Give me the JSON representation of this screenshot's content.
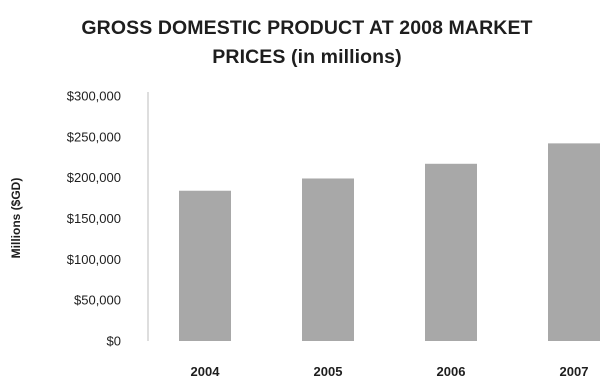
{
  "chart_data": {
    "type": "bar",
    "title_lines": [
      "GROSS DOMESTIC PRODUCT AT 2008 MARKET",
      "PRICES (in millions)"
    ],
    "xlabel": "",
    "ylabel": "Millions ($GD)",
    "categories": [
      "2004",
      "2005",
      "2006",
      "2007"
    ],
    "values": [
      184000,
      199000,
      217000,
      242000
    ],
    "ylim": [
      0,
      300000
    ],
    "yticks": [
      0,
      50000,
      100000,
      150000,
      200000,
      250000,
      300000
    ],
    "ytick_labels": [
      "$0",
      "$50,000",
      "$100,000",
      "$150,000",
      "$200,000",
      "$250,000",
      "$300,000"
    ],
    "grid": false,
    "bar_color": "#a8a8a8"
  }
}
